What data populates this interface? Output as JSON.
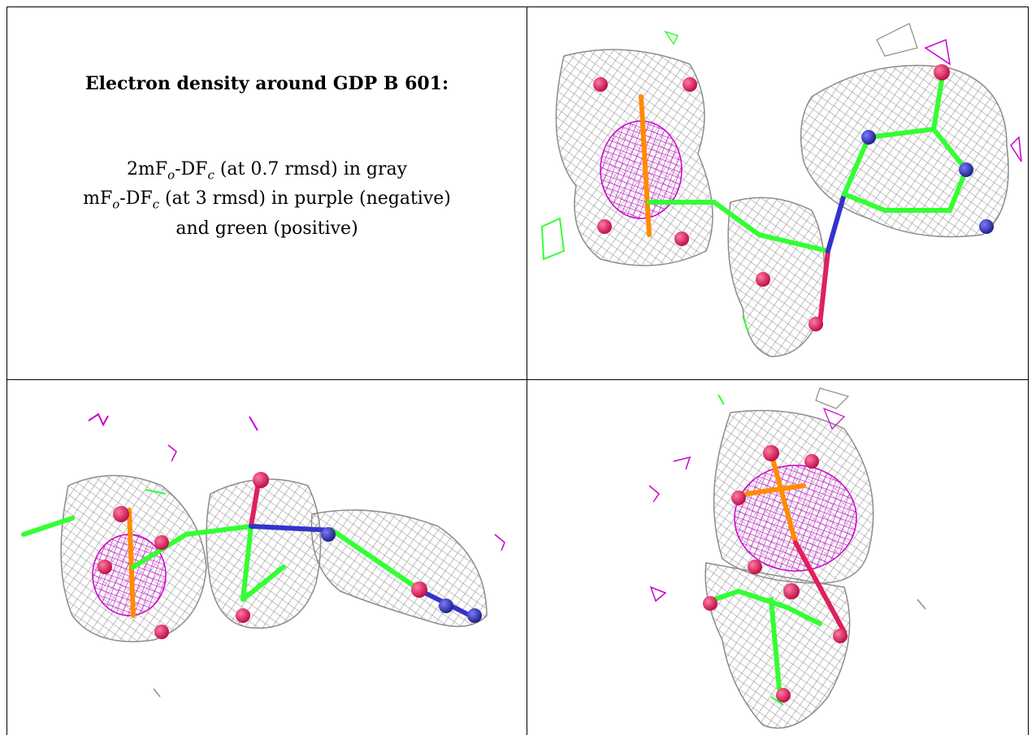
{
  "caption": {
    "title": "Electron density around GDP B 601:",
    "line1_prefix": "2mF",
    "line1_sub_o": "o",
    "line1_mid": "-DF",
    "line1_sub_c": "c",
    "line1_suffix": " (at 0.7 rmsd) in gray",
    "line2_prefix": "mF",
    "line2_sub_o": "o",
    "line2_mid": "-DF",
    "line2_sub_c": "c",
    "line2_suffix": " (at 3 rmsd) in purple (negative)",
    "line3": "and green (positive)"
  },
  "colors": {
    "mesh_2fofc": "#8c8c8c",
    "mesh_negative": "#cc00cc",
    "mesh_positive": "#33ff33",
    "carbon": "#33ff33",
    "oxygen": "#e0205a",
    "nitrogen": "#3333cc",
    "phosphorus": "#ff8c00"
  },
  "panels": [
    {
      "id": "view-1",
      "ligand": "GDP B 601",
      "orientation": "view 1"
    },
    {
      "id": "view-2",
      "ligand": "GDP B 601",
      "orientation": "view 2"
    },
    {
      "id": "view-3",
      "ligand": "GDP B 601",
      "orientation": "view 3"
    }
  ]
}
